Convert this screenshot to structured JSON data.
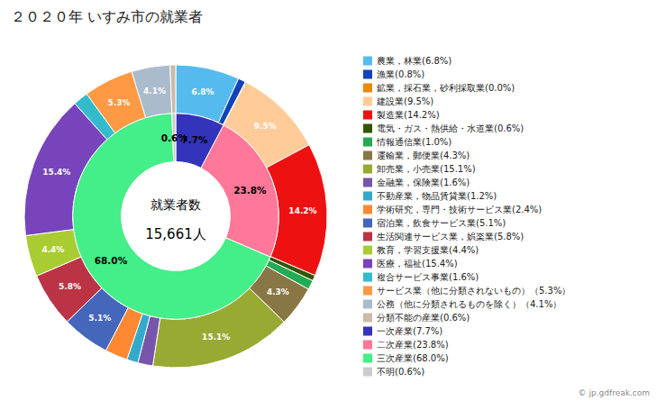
{
  "chart_data": {
    "type": "pie",
    "title": "２０２０年 いすみ市の就業者",
    "annotations": [
      "就業者数",
      "15,661人",
      "© jp.gdfreak.com"
    ],
    "legend": "right",
    "data_labels": true,
    "series": [
      {
        "categories": [
          "農業，林業(6.8%)",
          "漁業(0.8%)",
          "鉱業，採石業，砂利採取業(0.0%)",
          "建設業(9.5%)",
          "製造業(14.2%)",
          "電気・ガス・熱供給・水道業(0.6%)",
          "情報通信業(1.0%)",
          "運輸業，郵便業(4.3%)",
          "卸売業，小売業(15.1%)",
          "金融業，保険業(1.6%)",
          "不動産業，物品賃貸業(1.2%)",
          "学術研究，専門・技術サービス業(2.4%)",
          "宿泊業，飲食サービス業(5.1%)",
          "生活関連サービス業，娯楽業(5.8%)",
          "教育，学習支援業(4.4%)",
          "医療，福祉(15.4%)",
          "複合サービス事業(1.6%)",
          "サービス業（他に分類されないもの）（5.3%）",
          "公務（他に分類されるものを除く）（4.1%）",
          "分類不能の産業(0.6%)"
        ],
        "values": [
          6.8,
          0.8,
          0.05,
          9.5,
          14.2,
          0.6,
          1.0,
          4.3,
          15.1,
          1.6,
          1.2,
          2.4,
          5.1,
          5.8,
          4.4,
          15.4,
          1.6,
          5.3,
          4.1,
          0.6
        ],
        "value_labels": [
          "6.8%",
          null,
          null,
          "9.5%",
          "14.2%",
          null,
          null,
          "4.3%",
          "15.1%",
          null,
          null,
          null,
          "5.1%",
          "5.8%",
          "4.4%",
          "15.4%",
          null,
          "5.3%",
          "4.1%",
          null
        ],
        "colors": [
          "#55BBEE",
          "#1144BB",
          "#EE8800",
          "#FFCC99",
          "#EE1111",
          "#335500",
          "#22AA55",
          "#887744",
          "#99AA33",
          "#7755AA",
          "#33AACC",
          "#FF8833",
          "#4466BB",
          "#BB3344",
          "#AACC33",
          "#7744BB",
          "#33BBCC",
          "#FF9944",
          "#AABBCC",
          "#CCBBAA"
        ]
      },
      {
        "categories": [
          "一次産業(7.7%)",
          "二次産業(23.8%)",
          "三次産業(68.0%)",
          "不明(0.6%)"
        ],
        "values": [
          7.7,
          23.8,
          68.0,
          0.6
        ],
        "value_labels": [
          "7.7%",
          "23.8%",
          "68.0%",
          "0.6%"
        ],
        "colors": [
          "#3333BB",
          "#FF7799",
          "#44EE88",
          "#CCCCCC"
        ]
      }
    ]
  }
}
